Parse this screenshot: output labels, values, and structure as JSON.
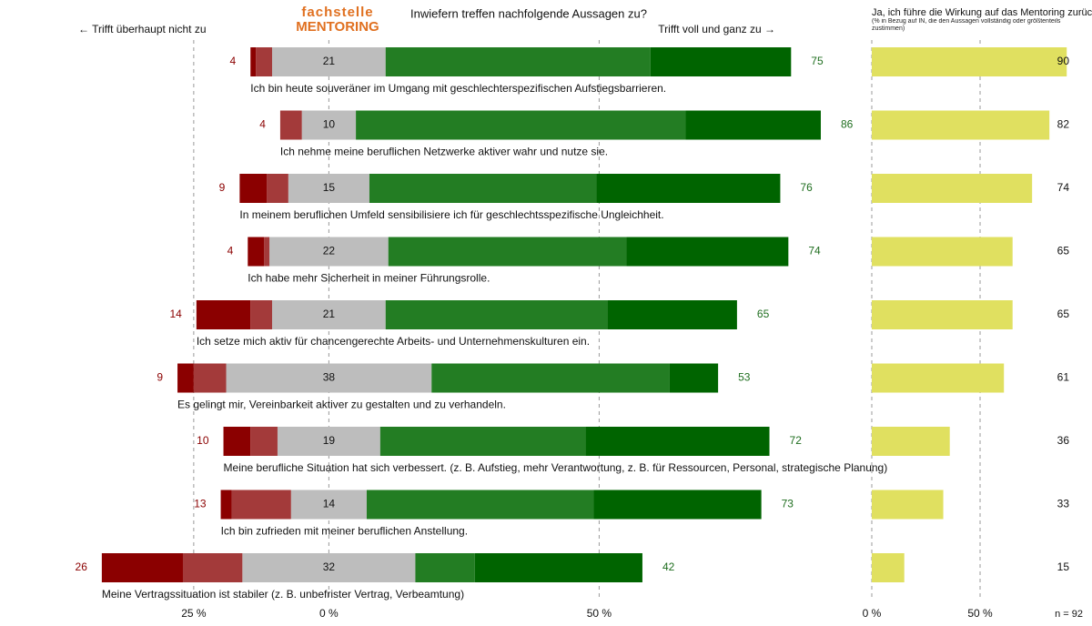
{
  "chart_data": [
    {
      "type": "diverging_bar",
      "title": "Inwiefern treffen nachfolgende Aussagen zu?",
      "logo": [
        "fachstelle",
        "MENTORING"
      ],
      "left_label": "← Trifft überhaupt nicht zu",
      "right_label": "Trifft voll und ganz zu →",
      "categories": [
        "Ich bin heute souveräner im Umgang mit geschlechterspezifischen Aufstiegsbarrieren.",
        "Ich nehme meine beruflichen Netzwerke aktiver wahr und nutze sie.",
        "In meinem beruflichen Umfeld sensibilisiere ich für geschlechtsspezifische Ungleichheit.",
        "Ich habe mehr Sicherheit in meiner Führungsrolle.",
        "Ich setze mich aktiv für chancengerechte Arbeits- und Unternehmenskulturen ein.",
        "Es gelingt mir, Vereinbarkeit aktiver zu gestalten und zu verhandeln.",
        "Meine berufliche Situation hat sich verbessert. (z. B. Aufstieg, mehr Verantwortung, z. B. für Ressourcen, Personal, strategische Planung)",
        "Ich bin zufrieden mit meiner beruflichen Anstellung.",
        "Meine Vertragssituation ist stabiler (z. B. unbefrister Vertrag, Verbeamtung)"
      ],
      "series": [
        {
          "color": "#8b0000",
          "values": [
            1,
            0,
            5,
            3,
            10,
            3,
            5,
            2,
            15
          ]
        },
        {
          "color": "#a33a3a",
          "values": [
            3,
            4,
            4,
            1,
            4,
            6,
            5,
            11,
            11
          ]
        },
        {
          "color": "#bdbdbd",
          "values": [
            21,
            10,
            15,
            22,
            21,
            38,
            19,
            14,
            32
          ]
        },
        {
          "color": "#237d23",
          "values": [
            49,
            61,
            42,
            44,
            41,
            44,
            38,
            42,
            11
          ]
        },
        {
          "color": "#006400",
          "values": [
            26,
            25,
            34,
            30,
            24,
            9,
            34,
            31,
            31
          ]
        }
      ],
      "disagree_totals": [
        4,
        4,
        9,
        4,
        14,
        9,
        10,
        13,
        26
      ],
      "agree_totals": [
        75,
        86,
        76,
        74,
        65,
        53,
        72,
        73,
        42
      ],
      "xlim": [
        -44,
        97.4
      ],
      "xticks": [
        {
          "value": -25,
          "label": "25 %"
        },
        {
          "value": 0,
          "label": "0 %"
        },
        {
          "value": 50,
          "label": "50 %"
        }
      ],
      "grid": true
    },
    {
      "type": "bar",
      "title": "Ja, ich führe die Wirkung auf das Mentoring zurück",
      "subtitle": "(% in Bezug auf IN, die den Aussagen vollständig oder größtenteils zustimmen)",
      "note": "n = 92",
      "color": "#e0e060",
      "values": [
        90,
        82,
        74,
        65,
        65,
        61,
        36,
        33,
        15
      ],
      "xlim": [
        0,
        92
      ],
      "xticks": [
        {
          "value": 0,
          "label": "0 %"
        },
        {
          "value": 50,
          "label": "50 %"
        }
      ],
      "grid": true
    }
  ]
}
